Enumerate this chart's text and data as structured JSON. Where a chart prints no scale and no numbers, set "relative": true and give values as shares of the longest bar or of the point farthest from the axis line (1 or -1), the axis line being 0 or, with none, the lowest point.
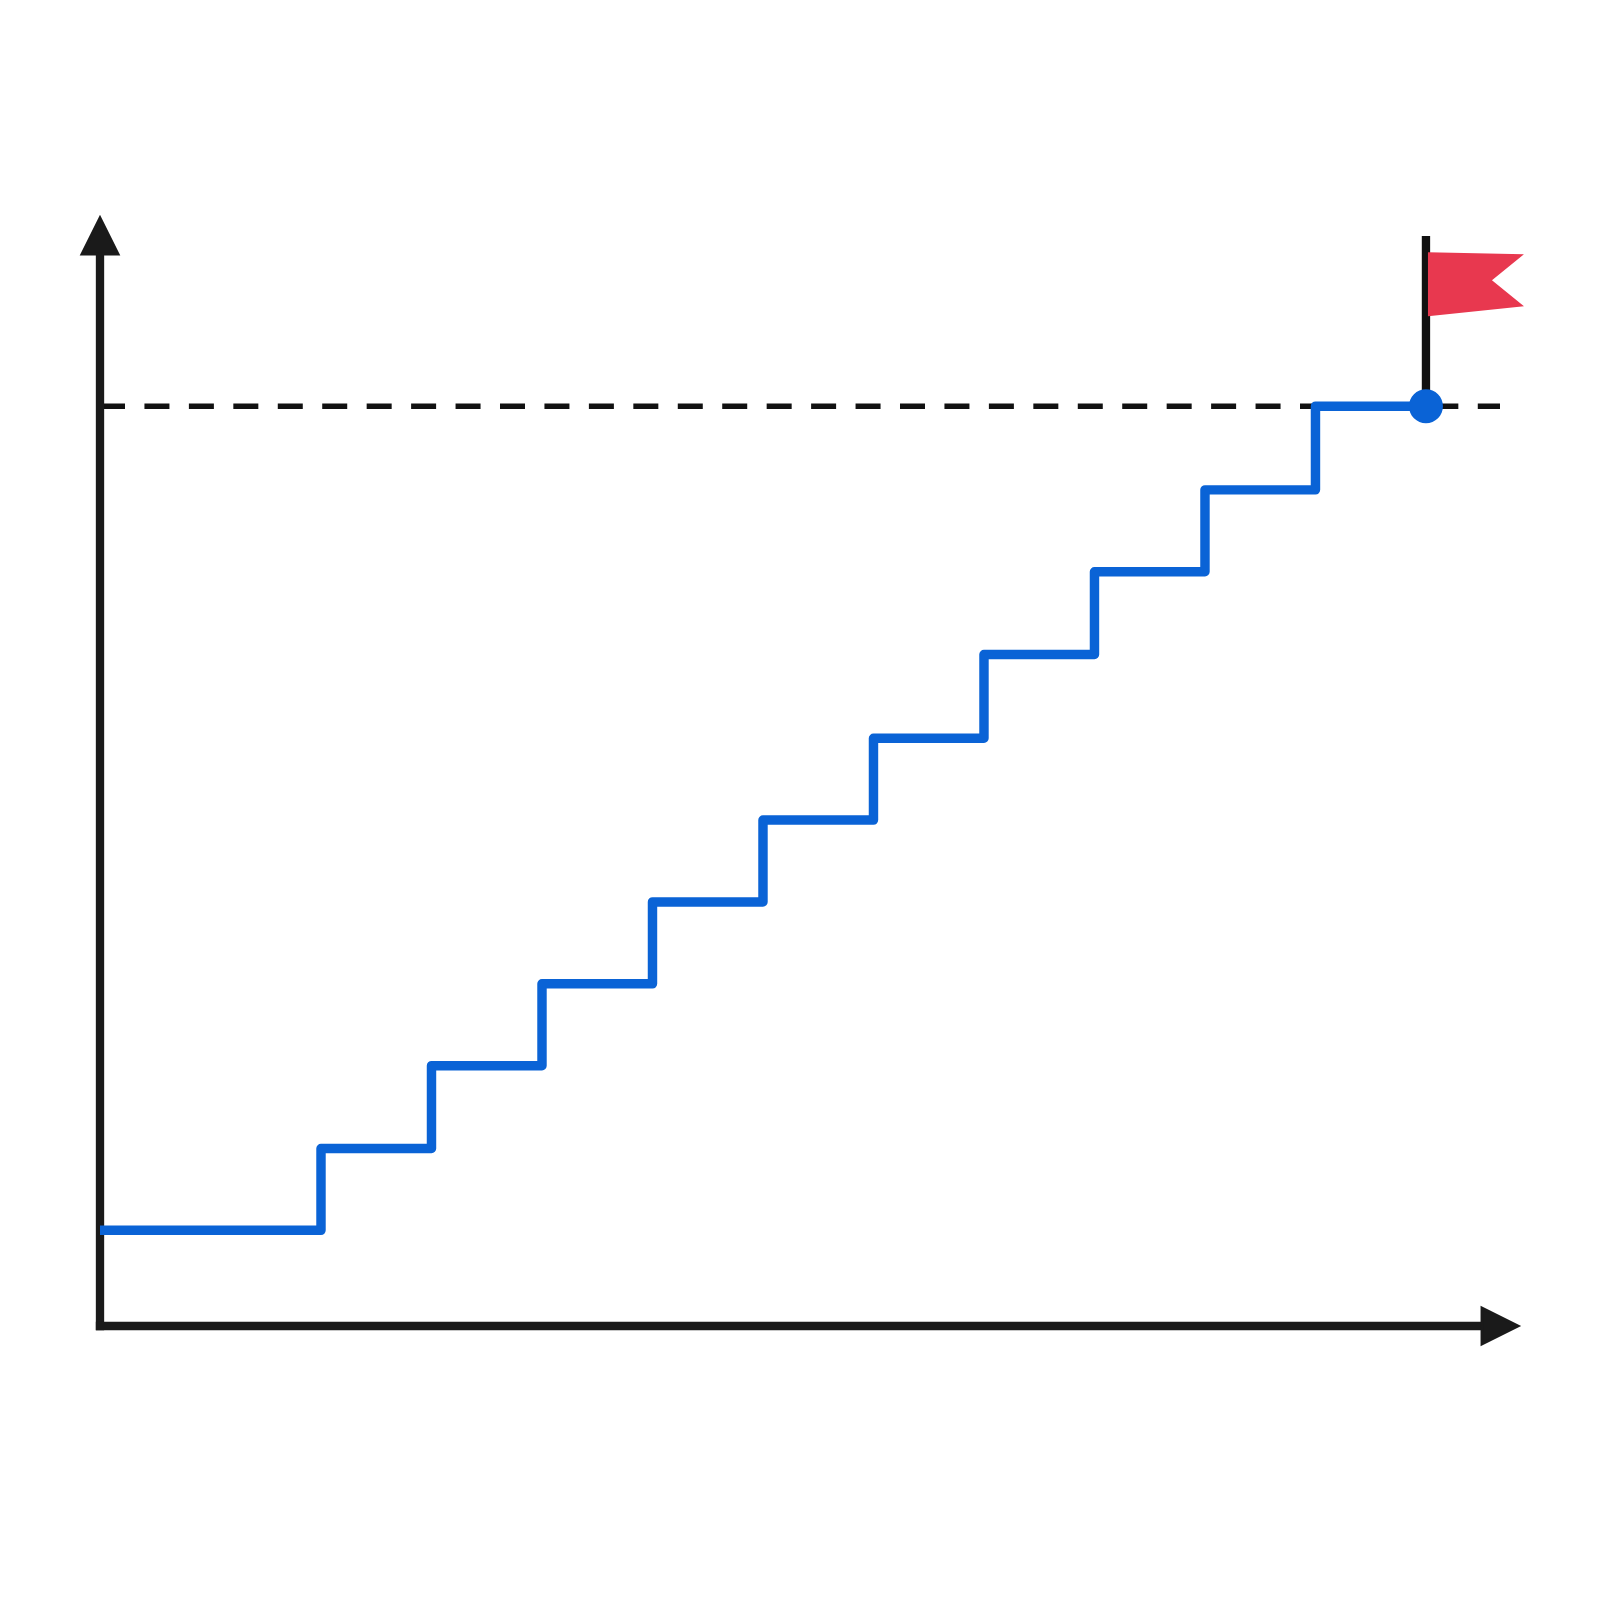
{
  "chart_data": {
    "type": "step",
    "relative": true,
    "categories": [
      null,
      null,
      null,
      null,
      null,
      null,
      null,
      null,
      null,
      null,
      null,
      null,
      null
    ],
    "series": [
      {
        "color": "#0a63d6",
        "values": [
          0.104,
          0.104,
          0.193,
          0.283,
          0.372,
          0.461,
          0.55,
          0.639,
          0.73,
          0.82,
          0.909,
          1,
          1
        ]
      }
    ],
    "ref_lines": [
      {
        "axis": "y",
        "value": 1,
        "color": "#111111",
        "line_style": "dashed"
      }
    ]
  }
}
